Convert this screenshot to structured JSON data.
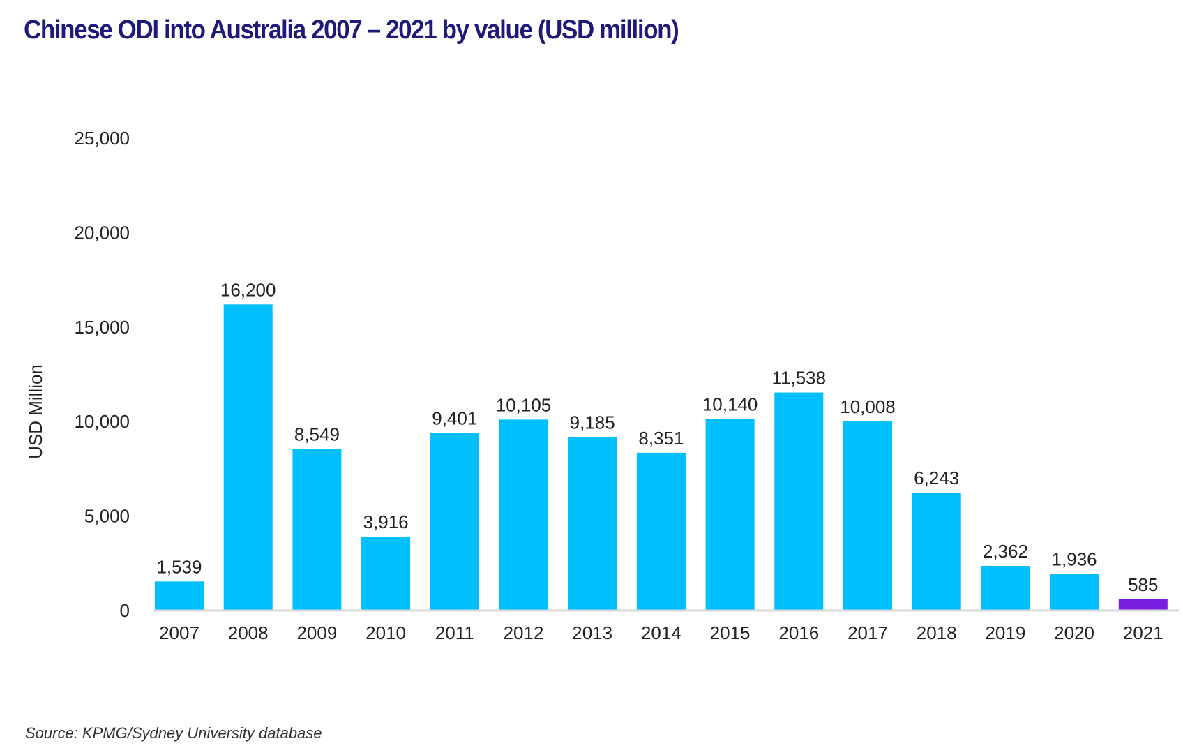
{
  "title": "Chinese ODI into Australia 2007 – 2021 by value (USD million)",
  "source": "Source: KPMG/Sydney University database",
  "colors": {
    "bar": "#00bfff",
    "highlight": "#7a1fe0",
    "baseline": "#d8d8d8",
    "title": "#1e1a7a"
  },
  "chart_data": {
    "type": "bar",
    "ylabel": "USD Million",
    "xlabel": "",
    "ylim": [
      0,
      25000
    ],
    "yticks": [
      0,
      5000,
      10000,
      15000,
      20000,
      25000
    ],
    "ytick_labels": [
      "0",
      "5,000",
      "10,000",
      "15,000",
      "20,000",
      "25,000"
    ],
    "grid": false,
    "categories": [
      "2007",
      "2008",
      "2009",
      "2010",
      "2011",
      "2012",
      "2013",
      "2014",
      "2015",
      "2016",
      "2017",
      "2018",
      "2019",
      "2020",
      "2021"
    ],
    "values": [
      1539,
      16200,
      8549,
      3916,
      9401,
      10105,
      9185,
      8351,
      10140,
      11538,
      10008,
      6243,
      2362,
      1936,
      585
    ],
    "value_labels": [
      "1,539",
      "16,200",
      "8,549",
      "3,916",
      "9,401",
      "10,105",
      "9,185",
      "8,351",
      "10,140",
      "11,538",
      "10,008",
      "6,243",
      "2,362",
      "1,936",
      "585"
    ],
    "highlight_category": "2021"
  }
}
